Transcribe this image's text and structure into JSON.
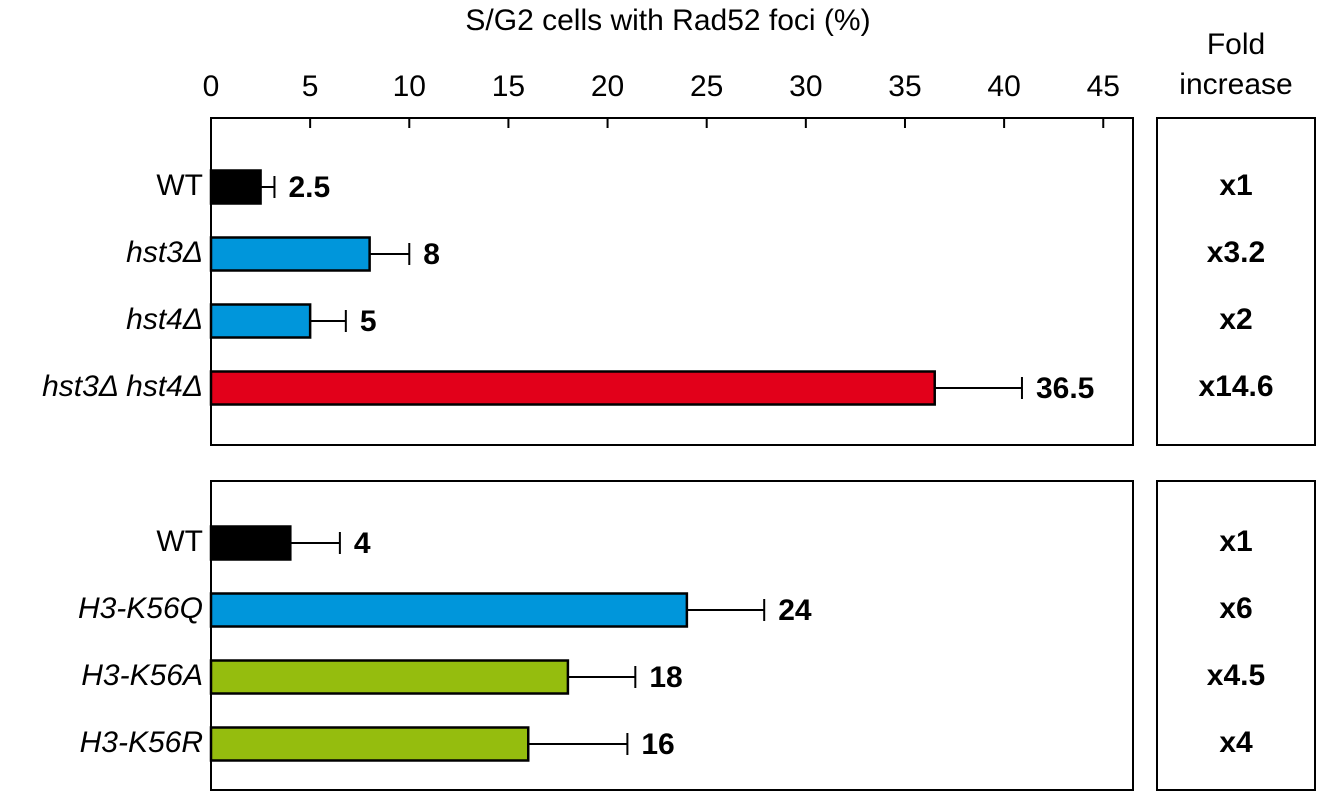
{
  "chart_data": [
    {
      "type": "bar",
      "orientation": "horizontal",
      "x_label": "S/G2 cells with Rad52 foci (%)",
      "xlim": [
        0,
        46.5
      ],
      "xticks": [
        0,
        5,
        10,
        15,
        20,
        25,
        30,
        35,
        40,
        45
      ],
      "fold_header": [
        "Fold",
        "increase"
      ],
      "categories": [
        "WT",
        "hst3Δ",
        "hst4Δ",
        "hst3Δ hst4Δ"
      ],
      "italic": [
        false,
        true,
        true,
        true
      ],
      "values": [
        2.5,
        8,
        5,
        36.5
      ],
      "errors": [
        0.7,
        2,
        1.8,
        4.4
      ],
      "colors": [
        "#000000",
        "#0096db",
        "#0096db",
        "#e2001a"
      ],
      "fold": [
        "x1",
        "x3.2",
        "x2",
        "x14.6"
      ]
    },
    {
      "type": "bar",
      "orientation": "horizontal",
      "xlim": [
        0,
        46.5
      ],
      "categories": [
        "WT",
        "H3-K56Q",
        "H3-K56A",
        "H3-K56R"
      ],
      "italic": [
        false,
        true,
        true,
        true
      ],
      "values": [
        4,
        24,
        18,
        16
      ],
      "errors": [
        2.5,
        3.9,
        3.4,
        5
      ],
      "colors": [
        "#000000",
        "#0096db",
        "#95bd0e",
        "#95bd0e"
      ],
      "fold": [
        "x1",
        "x6",
        "x4.5",
        "x4"
      ]
    }
  ]
}
